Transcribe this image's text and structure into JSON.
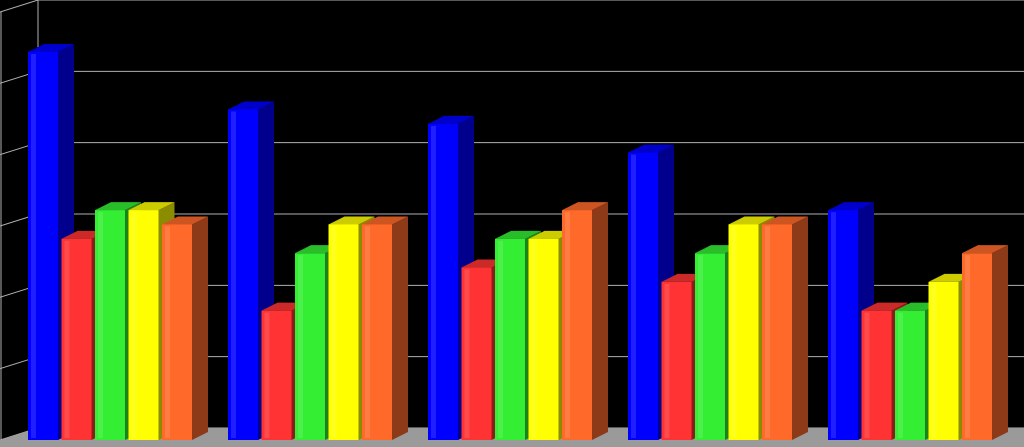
{
  "chart_data": {
    "type": "bar",
    "title": "",
    "xlabel": "",
    "ylabel": "",
    "grid": true,
    "three_d": true,
    "ylim": [
      0,
      6
    ],
    "groups": 5,
    "series": [
      {
        "color": "#0000ff",
        "values": [
          5.4,
          4.6,
          4.4,
          4.0,
          3.2
        ]
      },
      {
        "color": "#ff3333",
        "values": [
          2.8,
          1.8,
          2.4,
          2.2,
          1.8
        ]
      },
      {
        "color": "#33ee33",
        "values": [
          3.2,
          2.6,
          2.8,
          2.6,
          1.8
        ]
      },
      {
        "color": "#ffff00",
        "values": [
          3.2,
          3.0,
          2.8,
          3.0,
          2.2
        ]
      },
      {
        "color": "#ff6a2a",
        "values": [
          3.0,
          3.0,
          3.2,
          3.0,
          2.6
        ]
      }
    ],
    "colors": {
      "background": "#000000",
      "grid": "#b0b0b0",
      "floor": "#9a9a9a"
    }
  }
}
